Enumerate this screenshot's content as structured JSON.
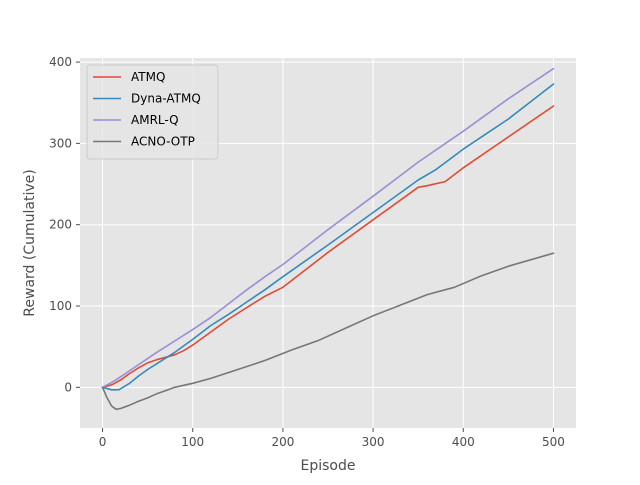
{
  "colors": {
    "plot_background": "#e5e5e5",
    "grid": "#ffffff",
    "tick_text": "#4d4d4d",
    "legend_face": "#e5e5e5",
    "legend_edge": "#cccccc"
  },
  "chart_data": {
    "type": "line",
    "title": "",
    "xlabel": "Episode",
    "ylabel": "Reward (Cumulative)",
    "xlim": [
      -25,
      525
    ],
    "ylim": [
      -50,
      405
    ],
    "xticks": [
      0,
      100,
      200,
      300,
      400,
      500
    ],
    "yticks": [
      0,
      100,
      200,
      300,
      400
    ],
    "xtick_labels": [
      "0",
      "100",
      "200",
      "300",
      "400",
      "500"
    ],
    "ytick_labels": [
      "0",
      "100",
      "200",
      "300",
      "400"
    ],
    "grid": true,
    "legend_position": "top-left",
    "series": [
      {
        "name": "ATMQ",
        "color": "#e24a33",
        "x": [
          0,
          10,
          20,
          30,
          40,
          50,
          60,
          70,
          80,
          90,
          100,
          120,
          140,
          160,
          180,
          200,
          250,
          300,
          350,
          360,
          380,
          400,
          450,
          500
        ],
        "y": [
          0,
          3,
          9,
          17,
          24,
          30,
          34,
          37,
          40,
          45,
          52,
          68,
          84,
          98,
          112,
          123,
          166,
          206,
          246,
          248,
          253,
          270,
          308,
          346
        ]
      },
      {
        "name": "Dyna-ATMQ",
        "color": "#348abd",
        "x": [
          0,
          10,
          18,
          30,
          40,
          50,
          60,
          70,
          80,
          90,
          100,
          120,
          140,
          160,
          180,
          200,
          250,
          300,
          350,
          370,
          400,
          450,
          500
        ],
        "y": [
          0,
          -3,
          -3,
          5,
          14,
          22,
          29,
          36,
          43,
          51,
          59,
          76,
          90,
          105,
          120,
          136,
          175,
          215,
          255,
          268,
          293,
          330,
          373
        ]
      },
      {
        "name": "AMRL-Q",
        "color": "#988ed5",
        "x": [
          0,
          10,
          20,
          40,
          60,
          80,
          100,
          120,
          140,
          160,
          180,
          200,
          250,
          300,
          350,
          400,
          450,
          500
        ],
        "y": [
          0,
          6,
          13,
          28,
          43,
          57,
          71,
          86,
          103,
          120,
          136,
          151,
          194,
          235,
          277,
          315,
          355,
          392
        ]
      },
      {
        "name": "ACNO-OTP",
        "color": "#777777",
        "x": [
          0,
          5,
          10,
          15,
          20,
          30,
          40,
          50,
          60,
          70,
          80,
          100,
          120,
          150,
          180,
          210,
          240,
          270,
          300,
          330,
          360,
          390,
          420,
          450,
          500
        ],
        "y": [
          0,
          -13,
          -23,
          -27,
          -26,
          -22,
          -17,
          -13,
          -8,
          -4,
          0,
          5,
          11,
          22,
          33,
          46,
          58,
          73,
          88,
          101,
          114,
          123,
          137,
          149,
          165
        ]
      }
    ]
  }
}
